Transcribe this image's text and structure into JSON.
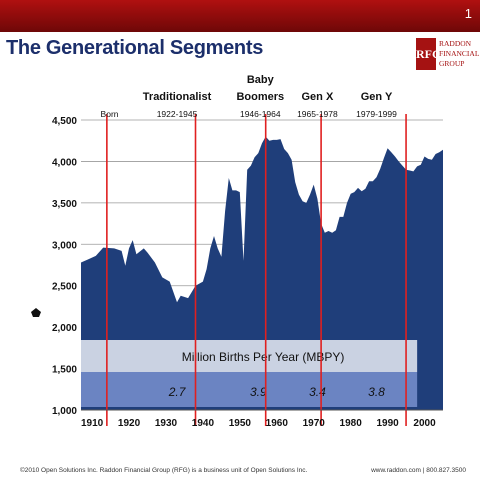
{
  "header": {
    "slide_number": "1",
    "title": "The Generational Segments"
  },
  "logo": {
    "mark": "RFG",
    "line1": "RADDON",
    "line2": "FINANCIAL",
    "line3": "GROUP"
  },
  "footer": {
    "left": "©2010 Open Solutions Inc.  Raddon Financial Group (RFG) is a business unit of Open Solutions Inc.",
    "right": "www.raddon.com  |  800.827.3500"
  },
  "colors": {
    "area": "#1f3e7a",
    "divider": "#e02020",
    "band_top": "#d4dae8",
    "band_bottom": "#7088c6"
  },
  "chart_data": {
    "type": "area",
    "title": "",
    "xlabel": "",
    "ylabel": "",
    "xlim": [
      1907,
      2005
    ],
    "ylim": [
      1000,
      4500
    ],
    "x_ticks": [
      1910,
      1920,
      1930,
      1940,
      1950,
      1960,
      1970,
      1980,
      1990,
      2000
    ],
    "y_ticks": [
      {
        "value": 1000,
        "label": "1,000"
      },
      {
        "value": 1500,
        "label": "1,500"
      },
      {
        "value": 2000,
        "label": "2,000"
      },
      {
        "value": 2500,
        "label": "2,500"
      },
      {
        "value": 3000,
        "label": "3,000"
      },
      {
        "value": 3500,
        "label": "3,500"
      },
      {
        "value": 4000,
        "label": "4,000"
      },
      {
        "value": 4500,
        "label": "4,500"
      }
    ],
    "grid": "horizontal",
    "series": [
      {
        "points": [
          [
            1907,
            2780
          ],
          [
            1909,
            2820
          ],
          [
            1911,
            2860
          ],
          [
            1913,
            2960
          ],
          [
            1916,
            2950
          ],
          [
            1918,
            2920
          ],
          [
            1919,
            2740
          ],
          [
            1920,
            2950
          ],
          [
            1921,
            3050
          ],
          [
            1922,
            2880
          ],
          [
            1924,
            2950
          ],
          [
            1925,
            2900
          ],
          [
            1927,
            2780
          ],
          [
            1929,
            2600
          ],
          [
            1931,
            2550
          ],
          [
            1933,
            2300
          ],
          [
            1934,
            2380
          ],
          [
            1936,
            2350
          ],
          [
            1938,
            2500
          ],
          [
            1940,
            2550
          ],
          [
            1941,
            2700
          ],
          [
            1942,
            2950
          ],
          [
            1943,
            3100
          ],
          [
            1944,
            2950
          ],
          [
            1945,
            2850
          ],
          [
            1946,
            3400
          ],
          [
            1947,
            3800
          ],
          [
            1948,
            3650
          ],
          [
            1949,
            3650
          ],
          [
            1950,
            3630
          ],
          [
            1951,
            2800
          ],
          [
            1952,
            3900
          ],
          [
            1953,
            3950
          ],
          [
            1954,
            4050
          ],
          [
            1955,
            4100
          ],
          [
            1956,
            4220
          ],
          [
            1957,
            4300
          ],
          [
            1958,
            4250
          ],
          [
            1959,
            4260
          ],
          [
            1960,
            4260
          ],
          [
            1961,
            4270
          ],
          [
            1962,
            4150
          ],
          [
            1963,
            4100
          ],
          [
            1964,
            4020
          ],
          [
            1965,
            3750
          ],
          [
            1966,
            3600
          ],
          [
            1967,
            3520
          ],
          [
            1968,
            3500
          ],
          [
            1969,
            3600
          ],
          [
            1970,
            3720
          ],
          [
            1971,
            3550
          ],
          [
            1972,
            3250
          ],
          [
            1973,
            3140
          ],
          [
            1974,
            3160
          ],
          [
            1975,
            3140
          ],
          [
            1976,
            3170
          ],
          [
            1977,
            3330
          ],
          [
            1978,
            3330
          ],
          [
            1979,
            3500
          ],
          [
            1980,
            3610
          ],
          [
            1981,
            3630
          ],
          [
            1982,
            3680
          ],
          [
            1983,
            3640
          ],
          [
            1984,
            3670
          ],
          [
            1985,
            3760
          ],
          [
            1986,
            3760
          ],
          [
            1987,
            3810
          ],
          [
            1988,
            3910
          ],
          [
            1989,
            4040
          ],
          [
            1990,
            4160
          ],
          [
            1991,
            4110
          ],
          [
            1992,
            4060
          ],
          [
            1993,
            4000
          ],
          [
            1994,
            3950
          ],
          [
            1995,
            3900
          ],
          [
            1996,
            3890
          ],
          [
            1997,
            3880
          ],
          [
            1998,
            3940
          ],
          [
            1999,
            3960
          ],
          [
            2000,
            4060
          ],
          [
            2001,
            4030
          ],
          [
            2002,
            4020
          ],
          [
            2003,
            4090
          ],
          [
            2004,
            4110
          ],
          [
            2005,
            4140
          ]
        ]
      }
    ],
    "dividers": [
      1914,
      1938,
      1957,
      1972,
      1995
    ],
    "segments": [
      {
        "name": "Born",
        "years": "",
        "x": 1915
      },
      {
        "name": "Traditionalist",
        "years": "1922-1945",
        "x": 1933
      },
      {
        "name": "Baby\nBoomers",
        "years": "1946-1964",
        "x": 1955
      },
      {
        "name": "Gen X",
        "years": "1965-1978",
        "x": 1971
      },
      {
        "name": "Gen Y",
        "years": "1979-1999",
        "x": 1987
      }
    ],
    "mbpy_band": {
      "title": "Million Births Per Year (MBPY)",
      "x_range": [
        1907,
        1998
      ],
      "values": [
        {
          "label": "2.7",
          "x": 1933
        },
        {
          "label": "3.9",
          "x": 1955
        },
        {
          "label": "3.4",
          "x": 1971
        },
        {
          "label": "3.8",
          "x": 1987
        }
      ]
    }
  }
}
